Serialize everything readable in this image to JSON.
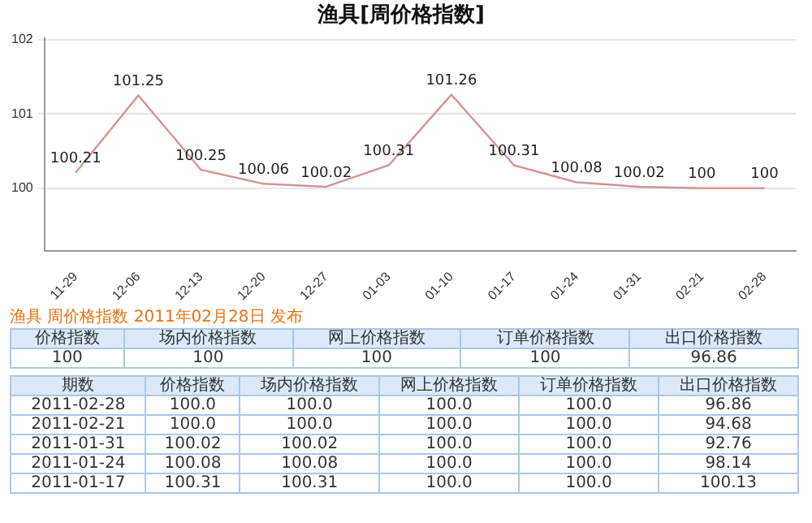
{
  "chart_data": [
    {
      "type": "line",
      "title": "渔具[周价格指数]",
      "categories": [
        "11-29",
        "12-06",
        "12-13",
        "12-20",
        "12-27",
        "01-03",
        "01-10",
        "01-17",
        "01-24",
        "01-31",
        "02-21",
        "02-28"
      ],
      "values": [
        100.21,
        101.25,
        100.25,
        100.06,
        100.02,
        100.31,
        101.26,
        100.31,
        100.08,
        100.02,
        100,
        100
      ],
      "color": "#d49494",
      "ylim": [
        99.15,
        102.02
      ],
      "yticks": [
        100,
        101,
        102
      ],
      "grid": "y",
      "line_style": "solid",
      "marker": "none",
      "data_labels": true,
      "legend": false
    },
    {
      "type": "other",
      "title": "渔具 周价格指数 2011年02月28日 发布",
      "categories": [
        "价格指数",
        "场内价格指数",
        "网上价格指数",
        "订单价格指数",
        "出口价格指数"
      ],
      "annotations": [
        "100",
        "100",
        "100",
        "100",
        "96.86"
      ]
    },
    {
      "type": "other",
      "categories": [
        "期数",
        "价格指数",
        "场内价格指数",
        "网上价格指数",
        "订单价格指数",
        "出口价格指数"
      ],
      "annotations": [
        "2011-02-28",
        "100.0",
        "100.0",
        "100.0",
        "100.0",
        "96.86",
        "2011-02-21",
        "100.0",
        "100.0",
        "100.0",
        "100.0",
        "94.68",
        "2011-01-31",
        "100.02",
        "100.02",
        "100.0",
        "100.0",
        "92.76",
        "2011-01-24",
        "100.08",
        "100.08",
        "100.0",
        "100.0",
        "98.14",
        "2011-01-17",
        "100.31",
        "100.31",
        "100.0",
        "100.0",
        "100.13"
      ]
    }
  ]
}
